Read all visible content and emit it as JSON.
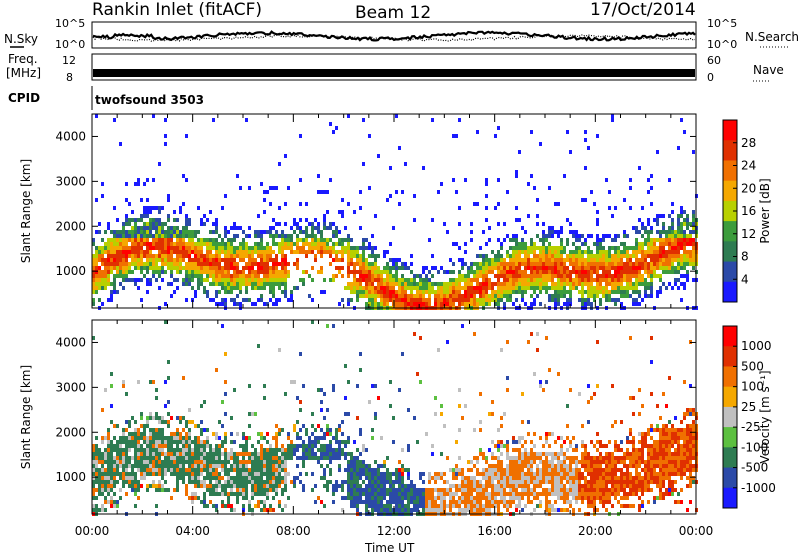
{
  "header": {
    "station": "Rankin Inlet (fitACF)",
    "beam": "Beam 12",
    "date": "17/Oct/2014"
  },
  "noise_panel": {
    "left_label": "N.Sky",
    "right_label": "N.Search",
    "ticks_left": [
      "10^5",
      "10^0"
    ],
    "ticks_right": [
      "10^5",
      "10^0"
    ]
  },
  "freq_panel": {
    "left_label_line1": "Freq.",
    "left_label_line2": "[MHz]",
    "right_label": "Nave",
    "ticks_left": [
      "12",
      "8"
    ],
    "ticks_right": [
      "60",
      "0"
    ]
  },
  "cpid_panel": {
    "label": "CPID",
    "program": "twofsound 3503"
  },
  "chart_data": [
    {
      "type": "heatmap",
      "title": "",
      "ylabel": "Slant Range [km]",
      "ylim": [
        180,
        4500
      ],
      "yticks": [
        "1000",
        "2000",
        "3000",
        "4000"
      ],
      "colorbar": {
        "label": "Power [dB]",
        "ticks": [
          "28",
          "24",
          "20",
          "16",
          "12",
          "8",
          "4"
        ],
        "range": [
          0,
          30
        ],
        "colors": [
          "#1a1aff",
          "#2b4aa8",
          "#2e7c52",
          "#3c9c3c",
          "#b8d000",
          "#f5a800",
          "#f07000",
          "#e03000",
          "#ff0000"
        ]
      }
    },
    {
      "type": "heatmap",
      "title": "",
      "ylabel": "Slant Range [km]",
      "xlabel": "Time UT",
      "ylim": [
        180,
        4500
      ],
      "yticks": [
        "1000",
        "2000",
        "3000",
        "4000"
      ],
      "xticks": [
        "00:00",
        "04:00",
        "08:00",
        "12:00",
        "16:00",
        "20:00",
        "00:00"
      ],
      "colorbar": {
        "label": "Velocity [m s⁻¹]",
        "ticks": [
          "1000",
          "500",
          "100",
          "25",
          "-25",
          "-100",
          "-500",
          "-1000"
        ],
        "colors": [
          "#1a1aff",
          "#2b4aa8",
          "#2e7c52",
          "#5cc040",
          "#c0c0c0",
          "#f5a800",
          "#f07000",
          "#e03000",
          "#ff0000"
        ]
      }
    }
  ]
}
